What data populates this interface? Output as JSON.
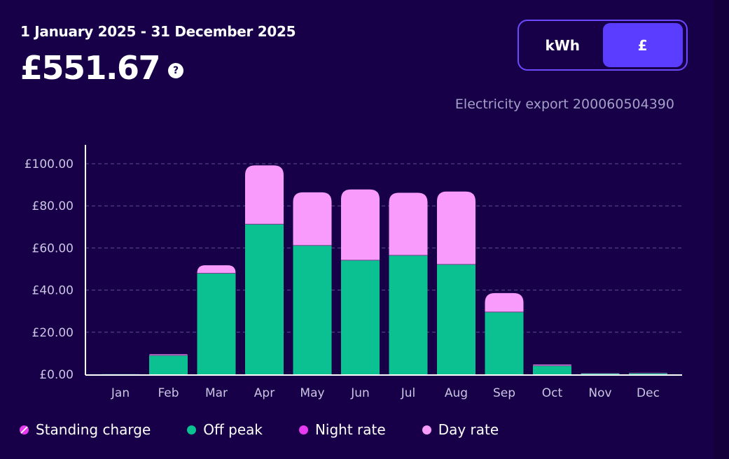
{
  "header": {
    "date_range": "1 January 2025 - 31 December 2025",
    "total": "£551.67",
    "help_glyph": "?"
  },
  "toggle": {
    "options": [
      "kWh",
      "£"
    ],
    "selected": "£"
  },
  "meter_label": "Electricity export 200060504390",
  "colors": {
    "background": "#180048",
    "off_peak": "#0bc191",
    "night_rate": "#e63bf1",
    "day_rate": "#f99afd",
    "accent": "#5b3dff"
  },
  "legend": [
    {
      "name": "Standing charge",
      "key": "standing"
    },
    {
      "name": "Off peak",
      "key": "off_peak"
    },
    {
      "name": "Night rate",
      "key": "night_rate"
    },
    {
      "name": "Day rate",
      "key": "day_rate"
    }
  ],
  "chart_data": {
    "type": "bar",
    "stacked": true,
    "categories": [
      "Jan",
      "Feb",
      "Mar",
      "Apr",
      "May",
      "Jun",
      "Jul",
      "Aug",
      "Sep",
      "Oct",
      "Nov",
      "Dec"
    ],
    "series": [
      {
        "name": "Off peak",
        "color": "#0bc191",
        "values": [
          0.1,
          9.0,
          48.0,
          71.3,
          61.2,
          54.2,
          56.5,
          52.2,
          29.6,
          4.1,
          0.5,
          0.6
        ]
      },
      {
        "name": "Day rate",
        "color": "#f99afd",
        "values": [
          0.0,
          0.5,
          3.8,
          27.9,
          25.2,
          33.6,
          29.7,
          34.6,
          9.0,
          0.5,
          0.1,
          0.1
        ]
      }
    ],
    "yticks": [
      "£100.00",
      "£80.00",
      "£60.00",
      "£40.00",
      "£20.00",
      "£0.00"
    ],
    "ylim": [
      0,
      100
    ],
    "grid": true,
    "legend_position": "bottom"
  }
}
